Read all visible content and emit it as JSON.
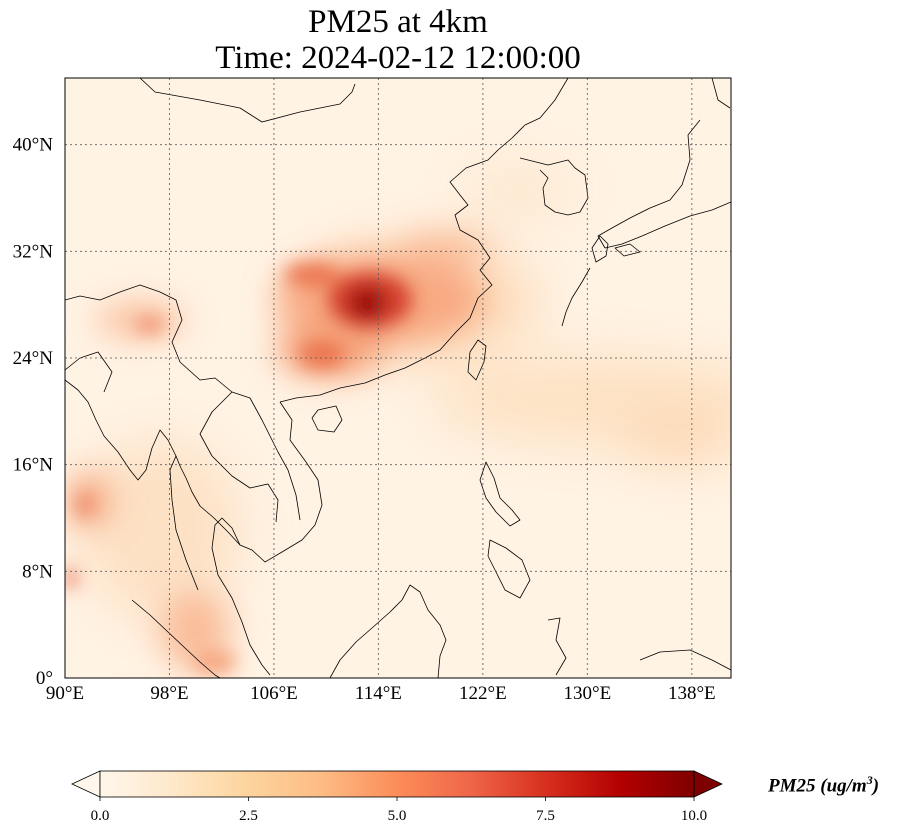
{
  "title": {
    "line1": "PM25 at 4km",
    "line2": "Time: 2024-02-12 12:00:00"
  },
  "map": {
    "variable": "PM25",
    "lon_range": [
      90,
      141
    ],
    "lat_range": [
      0,
      45
    ],
    "x_ticks": [
      {
        "lon": 90,
        "label": "90°E"
      },
      {
        "lon": 98,
        "label": "98°E"
      },
      {
        "lon": 106,
        "label": "106°E"
      },
      {
        "lon": 114,
        "label": "114°E"
      },
      {
        "lon": 122,
        "label": "122°E"
      },
      {
        "lon": 130,
        "label": "130°E"
      },
      {
        "lon": 138,
        "label": "138°E"
      }
    ],
    "y_ticks": [
      {
        "lat": 0,
        "label": "0°"
      },
      {
        "lat": 8,
        "label": "8°N"
      },
      {
        "lat": 16,
        "label": "16°N"
      },
      {
        "lat": 24,
        "label": "24°N"
      },
      {
        "lat": 32,
        "label": "32°N"
      },
      {
        "lat": 40,
        "label": "40°N"
      }
    ],
    "gridlines": true
  },
  "colorbar": {
    "label_prefix": "PM25 (ug/m",
    "label_exp": "3",
    "label_suffix": ")",
    "min": 0.0,
    "max": 10.0,
    "extend": "both",
    "colormap": "OrRd",
    "colors": [
      "#fff7ec",
      "#fee8c8",
      "#fdd49e",
      "#fdbb84",
      "#fc8d59",
      "#ef6548",
      "#d7301f",
      "#b30000",
      "#7f0000"
    ],
    "ticks": [
      {
        "value": 0.0,
        "label": "0.0"
      },
      {
        "value": 2.5,
        "label": "2.5"
      },
      {
        "value": 5.0,
        "label": "5.0"
      },
      {
        "value": 7.5,
        "label": "7.5"
      },
      {
        "value": 10.0,
        "label": "10.0"
      }
    ]
  }
}
